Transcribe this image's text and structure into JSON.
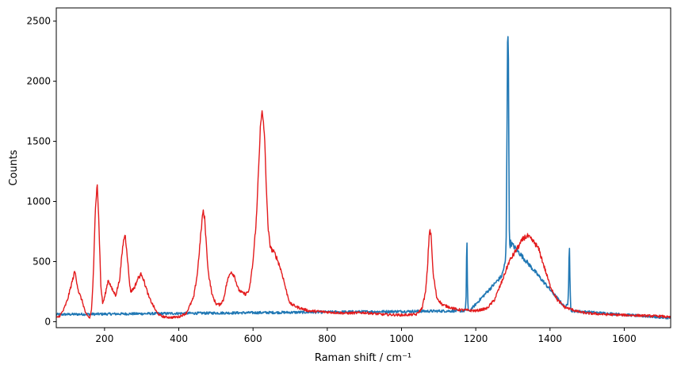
{
  "chart_data": {
    "type": "line",
    "title": "",
    "xlabel": "Raman shift / cm⁻¹",
    "ylabel": "Counts",
    "xlim": [
      70,
      1725
    ],
    "ylim": [
      -50,
      2610
    ],
    "xticks": [
      200,
      400,
      600,
      800,
      1000,
      1200,
      1400,
      1600
    ],
    "yticks": [
      0,
      500,
      1000,
      1500,
      2000,
      2500
    ],
    "grid": false,
    "legend": "none",
    "series": [
      {
        "color": "#1f77b4",
        "x": [
          70,
          1172,
          1174,
          1176,
          1178,
          1180,
          1182,
          1270,
          1280,
          1282,
          1284,
          1286,
          1288,
          1290,
          1292,
          1294,
          1296,
          1440,
          1448,
          1450,
          1452,
          1454,
          1456,
          1458,
          1725
        ],
        "y": [
          60,
          90,
          200,
          770,
          200,
          90,
          85,
          380,
          500,
          700,
          1500,
          2560,
          2200,
          800,
          620,
          660,
          650,
          120,
          140,
          300,
          710,
          300,
          100,
          90,
          30
        ]
      },
      {
        "color": "#e31a1c",
        "x": [
          70,
          80,
          90,
          100,
          110,
          120,
          130,
          140,
          150,
          160,
          165,
          170,
          175,
          180,
          185,
          190,
          195,
          200,
          210,
          220,
          230,
          240,
          250,
          255,
          260,
          265,
          270,
          280,
          290,
          300,
          310,
          320,
          330,
          340,
          350,
          360,
          380,
          400,
          420,
          440,
          450,
          460,
          465,
          470,
          475,
          480,
          490,
          500,
          510,
          520,
          530,
          540,
          550,
          560,
          570,
          580,
          590,
          600,
          610,
          615,
          620,
          625,
          630,
          635,
          640,
          645,
          650,
          660,
          670,
          680,
          690,
          700,
          720,
          750,
          800,
          850,
          900,
          950,
          1000,
          1040,
          1055,
          1065,
          1070,
          1073,
          1076,
          1080,
          1085,
          1095,
          1110,
          1150,
          1200,
          1230,
          1250,
          1270,
          1290,
          1310,
          1320,
          1330,
          1340,
          1350,
          1360,
          1370,
          1380,
          1400,
          1420,
          1440,
          1460,
          1480,
          1500,
          1550,
          1600,
          1650,
          1700,
          1725
        ],
        "y": [
          30,
          50,
          100,
          180,
          300,
          420,
          250,
          170,
          60,
          30,
          100,
          400,
          900,
          1190,
          800,
          300,
          150,
          200,
          350,
          270,
          220,
          340,
          650,
          730,
          600,
          400,
          250,
          280,
          360,
          400,
          300,
          200,
          140,
          80,
          50,
          40,
          35,
          40,
          70,
          200,
          400,
          750,
          920,
          850,
          600,
          400,
          220,
          150,
          140,
          180,
          330,
          420,
          380,
          270,
          240,
          230,
          260,
          500,
          900,
          1300,
          1620,
          1740,
          1600,
          1200,
          800,
          650,
          600,
          560,
          480,
          380,
          250,
          150,
          120,
          90,
          80,
          70,
          75,
          60,
          55,
          60,
          110,
          250,
          450,
          640,
          780,
          700,
          400,
          200,
          140,
          100,
          90,
          110,
          180,
          330,
          500,
          600,
          650,
          700,
          710,
          680,
          650,
          600,
          500,
          300,
          180,
          120,
          100,
          80,
          70,
          60,
          55,
          50,
          45,
          35
        ]
      }
    ]
  }
}
